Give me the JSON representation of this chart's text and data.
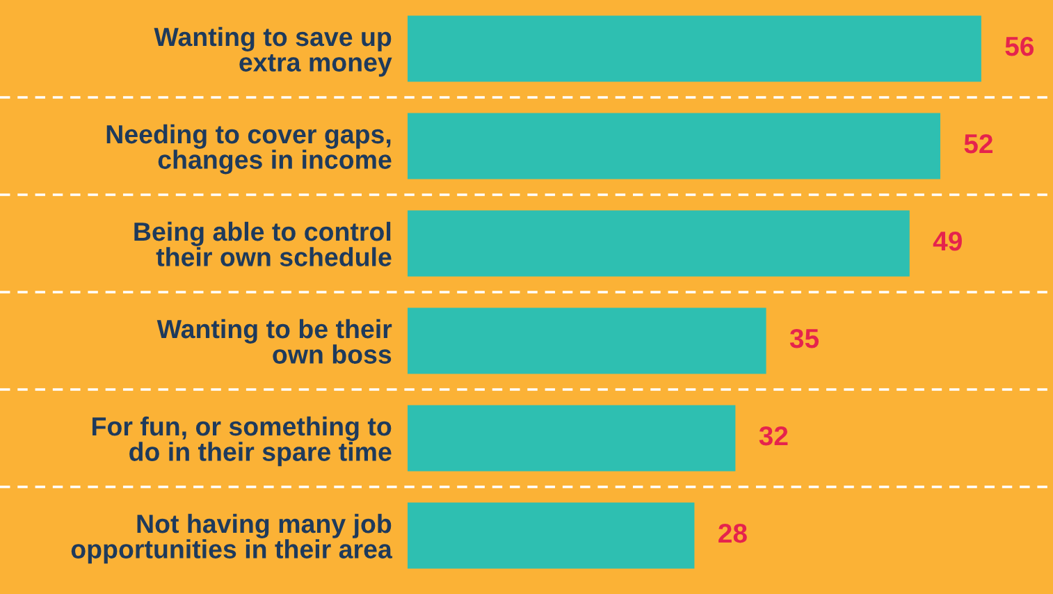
{
  "chart_data": {
    "type": "bar",
    "orientation": "horizontal",
    "categories": [
      "Wanting to save up\nextra money",
      "Needing to cover gaps,\nchanges in income",
      "Being able to control\ntheir own schedule",
      "Wanting to be their\nown boss",
      "For fun, or something to\ndo in their spare time",
      "Not having many job\nopportunities in their area"
    ],
    "values": [
      56,
      52,
      49,
      35,
      32,
      28
    ],
    "color": "#2ebfb1",
    "data_labels": true,
    "xlim": [
      0,
      63
    ],
    "tick_labels": "y",
    "grid": "y",
    "legend": false
  }
}
